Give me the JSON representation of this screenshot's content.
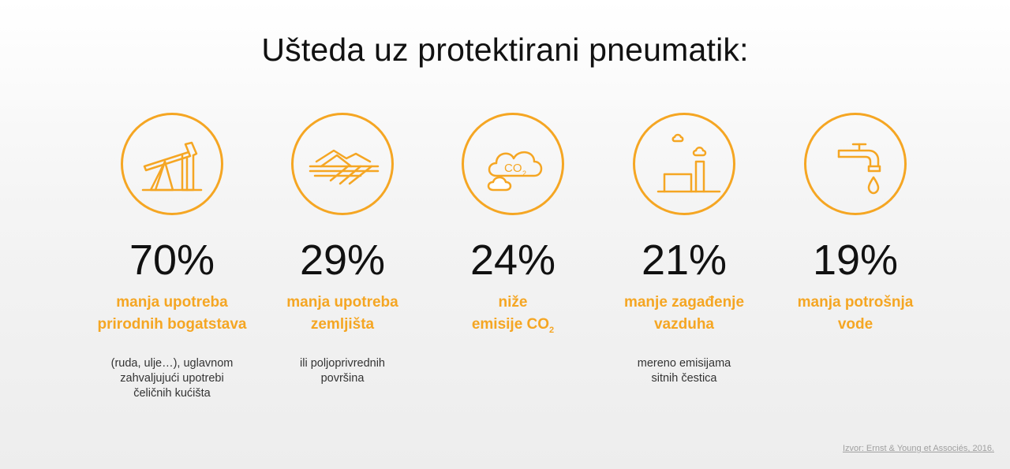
{
  "title": "Ušteda uz protektirani pneumatik:",
  "stats": [
    {
      "icon": "oil-pump-icon",
      "value": "70%",
      "line1": "manja upotreba",
      "line2": "prirodnih bogatstava",
      "note1": "(ruda, ulje…), uglavnom",
      "note2": "zahvaljujući upotrebi",
      "note3": "čeličnih kućišta"
    },
    {
      "icon": "farmland-icon",
      "value": "29%",
      "line1": "manja upotreba",
      "line2": "zemljišta",
      "note1": "ili poljoprivrednih",
      "note2": "površina",
      "note3": ""
    },
    {
      "icon": "co2-cloud-icon",
      "icon_text": "CO",
      "icon_sub": "2",
      "value": "24%",
      "line1": "niže",
      "line2": "emisije CO",
      "line2_sub": "2",
      "note1": "",
      "note2": "",
      "note3": ""
    },
    {
      "icon": "factory-icon",
      "value": "21%",
      "line1": "manje zagađenje",
      "line2": "vazduha",
      "note1": "mereno emisijama",
      "note2": "sitnih čestica",
      "note3": ""
    },
    {
      "icon": "water-tap-icon",
      "value": "19%",
      "line1": "manja potrošnja",
      "line2": "vode",
      "note1": "",
      "note2": "",
      "note3": ""
    }
  ],
  "source": "Izvor: Ernst & Young et Associés, 2016.",
  "colors": {
    "accent": "#f5a623",
    "text": "#111111",
    "note": "#333333",
    "source": "#a0a0a0"
  }
}
